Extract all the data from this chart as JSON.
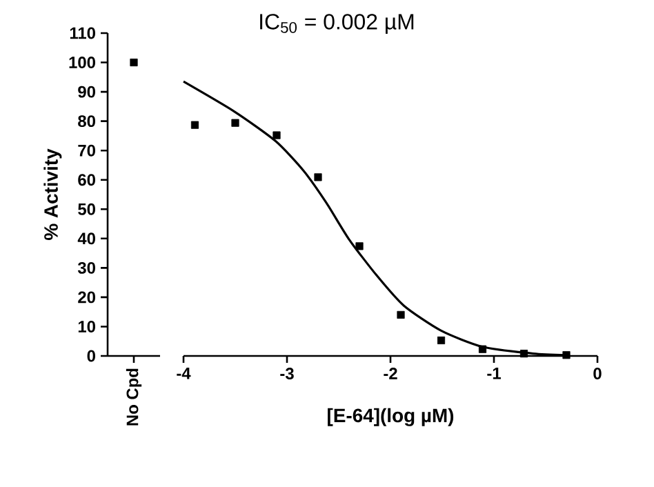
{
  "chart_data": [
    {
      "type": "scatter",
      "ylabel": "% Activity",
      "categories": [
        "No Cpd"
      ],
      "values": [
        100
      ],
      "color": "#000000",
      "marker": "square",
      "ylim": [
        0,
        110
      ],
      "yticks": [
        0,
        10,
        20,
        30,
        40,
        50,
        60,
        70,
        80,
        90,
        100,
        110
      ]
    },
    {
      "type": "scatter",
      "title": "IC$_{50}$ = 0.002 µM",
      "xlabel": "[E-64](log µM)",
      "xlim": [
        -4,
        0
      ],
      "xticks": [
        -4,
        -3,
        -2,
        -1,
        0
      ],
      "ylim": [
        0,
        110
      ],
      "tick_labels": "x",
      "series": [
        {
          "type": "scatter",
          "color": "#000000",
          "marker": "square",
          "x": [
            -3.89,
            -3.5,
            -3.1,
            -2.7,
            -2.3,
            -1.9,
            -1.51,
            -1.11,
            -0.71,
            -0.3
          ],
          "values": [
            78.7,
            79.4,
            75.2,
            60.9,
            37.4,
            14.0,
            5.3,
            2.3,
            0.8,
            0.3
          ]
        },
        {
          "type": "line",
          "color": "#000000",
          "marker": "none",
          "line_style": "solid",
          "x": [
            -4,
            -3.51,
            -3.11,
            -2.84,
            -2.62,
            -2.4,
            -2.13,
            -1.87,
            -1.51,
            -1.11,
            -0.62,
            -0.31
          ],
          "values": [
            93.5,
            83.3,
            73.2,
            63.1,
            52.2,
            39.7,
            27.3,
            17.1,
            8.6,
            3.1,
            0.8,
            0.3
          ]
        }
      ]
    }
  ]
}
